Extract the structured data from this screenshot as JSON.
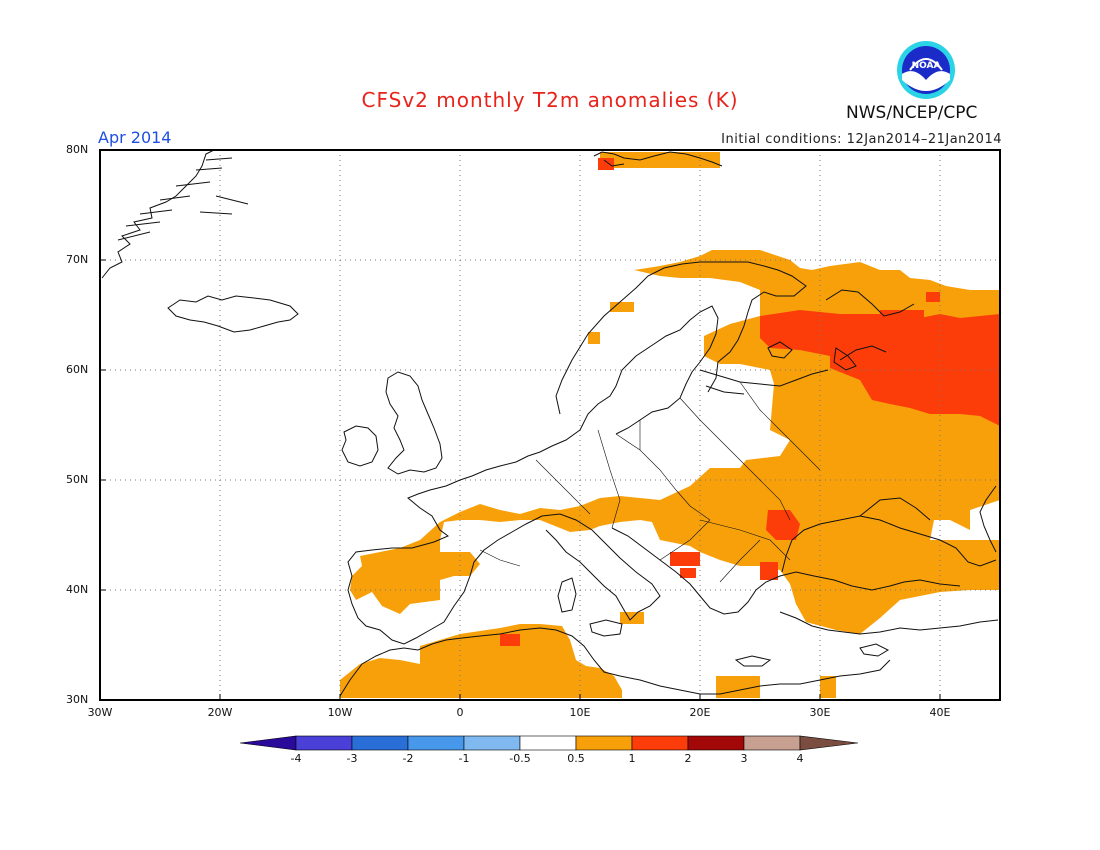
{
  "header": {
    "title": "CFSv2 monthly T2m anomalies (K)",
    "month": "Apr 2014",
    "initial_conditions": "Initial conditions: 12Jan2014–21Jan2014",
    "agency": "NWS/NCEP/CPC",
    "logo_text": "NOAA"
  },
  "map": {
    "lon_range": [
      -30,
      45
    ],
    "lat_range": [
      30,
      80
    ],
    "lat_labels": [
      "80N",
      "70N",
      "60N",
      "50N",
      "40N",
      "30N"
    ],
    "lon_labels": [
      "30W",
      "20W",
      "10W",
      "0",
      "10E",
      "20E",
      "30E",
      "40E"
    ]
  },
  "colorbar": {
    "labels": [
      "-4",
      "-3",
      "-2",
      "-1",
      "-0.5",
      "0.5",
      "1",
      "2",
      "3",
      "4"
    ],
    "colors": [
      "#2a0a9a",
      "#4a3fd6",
      "#2a6fd8",
      "#4797ea",
      "#80b9f0",
      "#ffffff",
      "#f8a00a",
      "#fc3d0a",
      "#a30808",
      "#c8a092",
      "#7a4d40"
    ]
  },
  "anomaly_colors": {
    "level_0_5_to_1": "#f8a00a",
    "level_1_to_2": "#fc3d0a"
  }
}
